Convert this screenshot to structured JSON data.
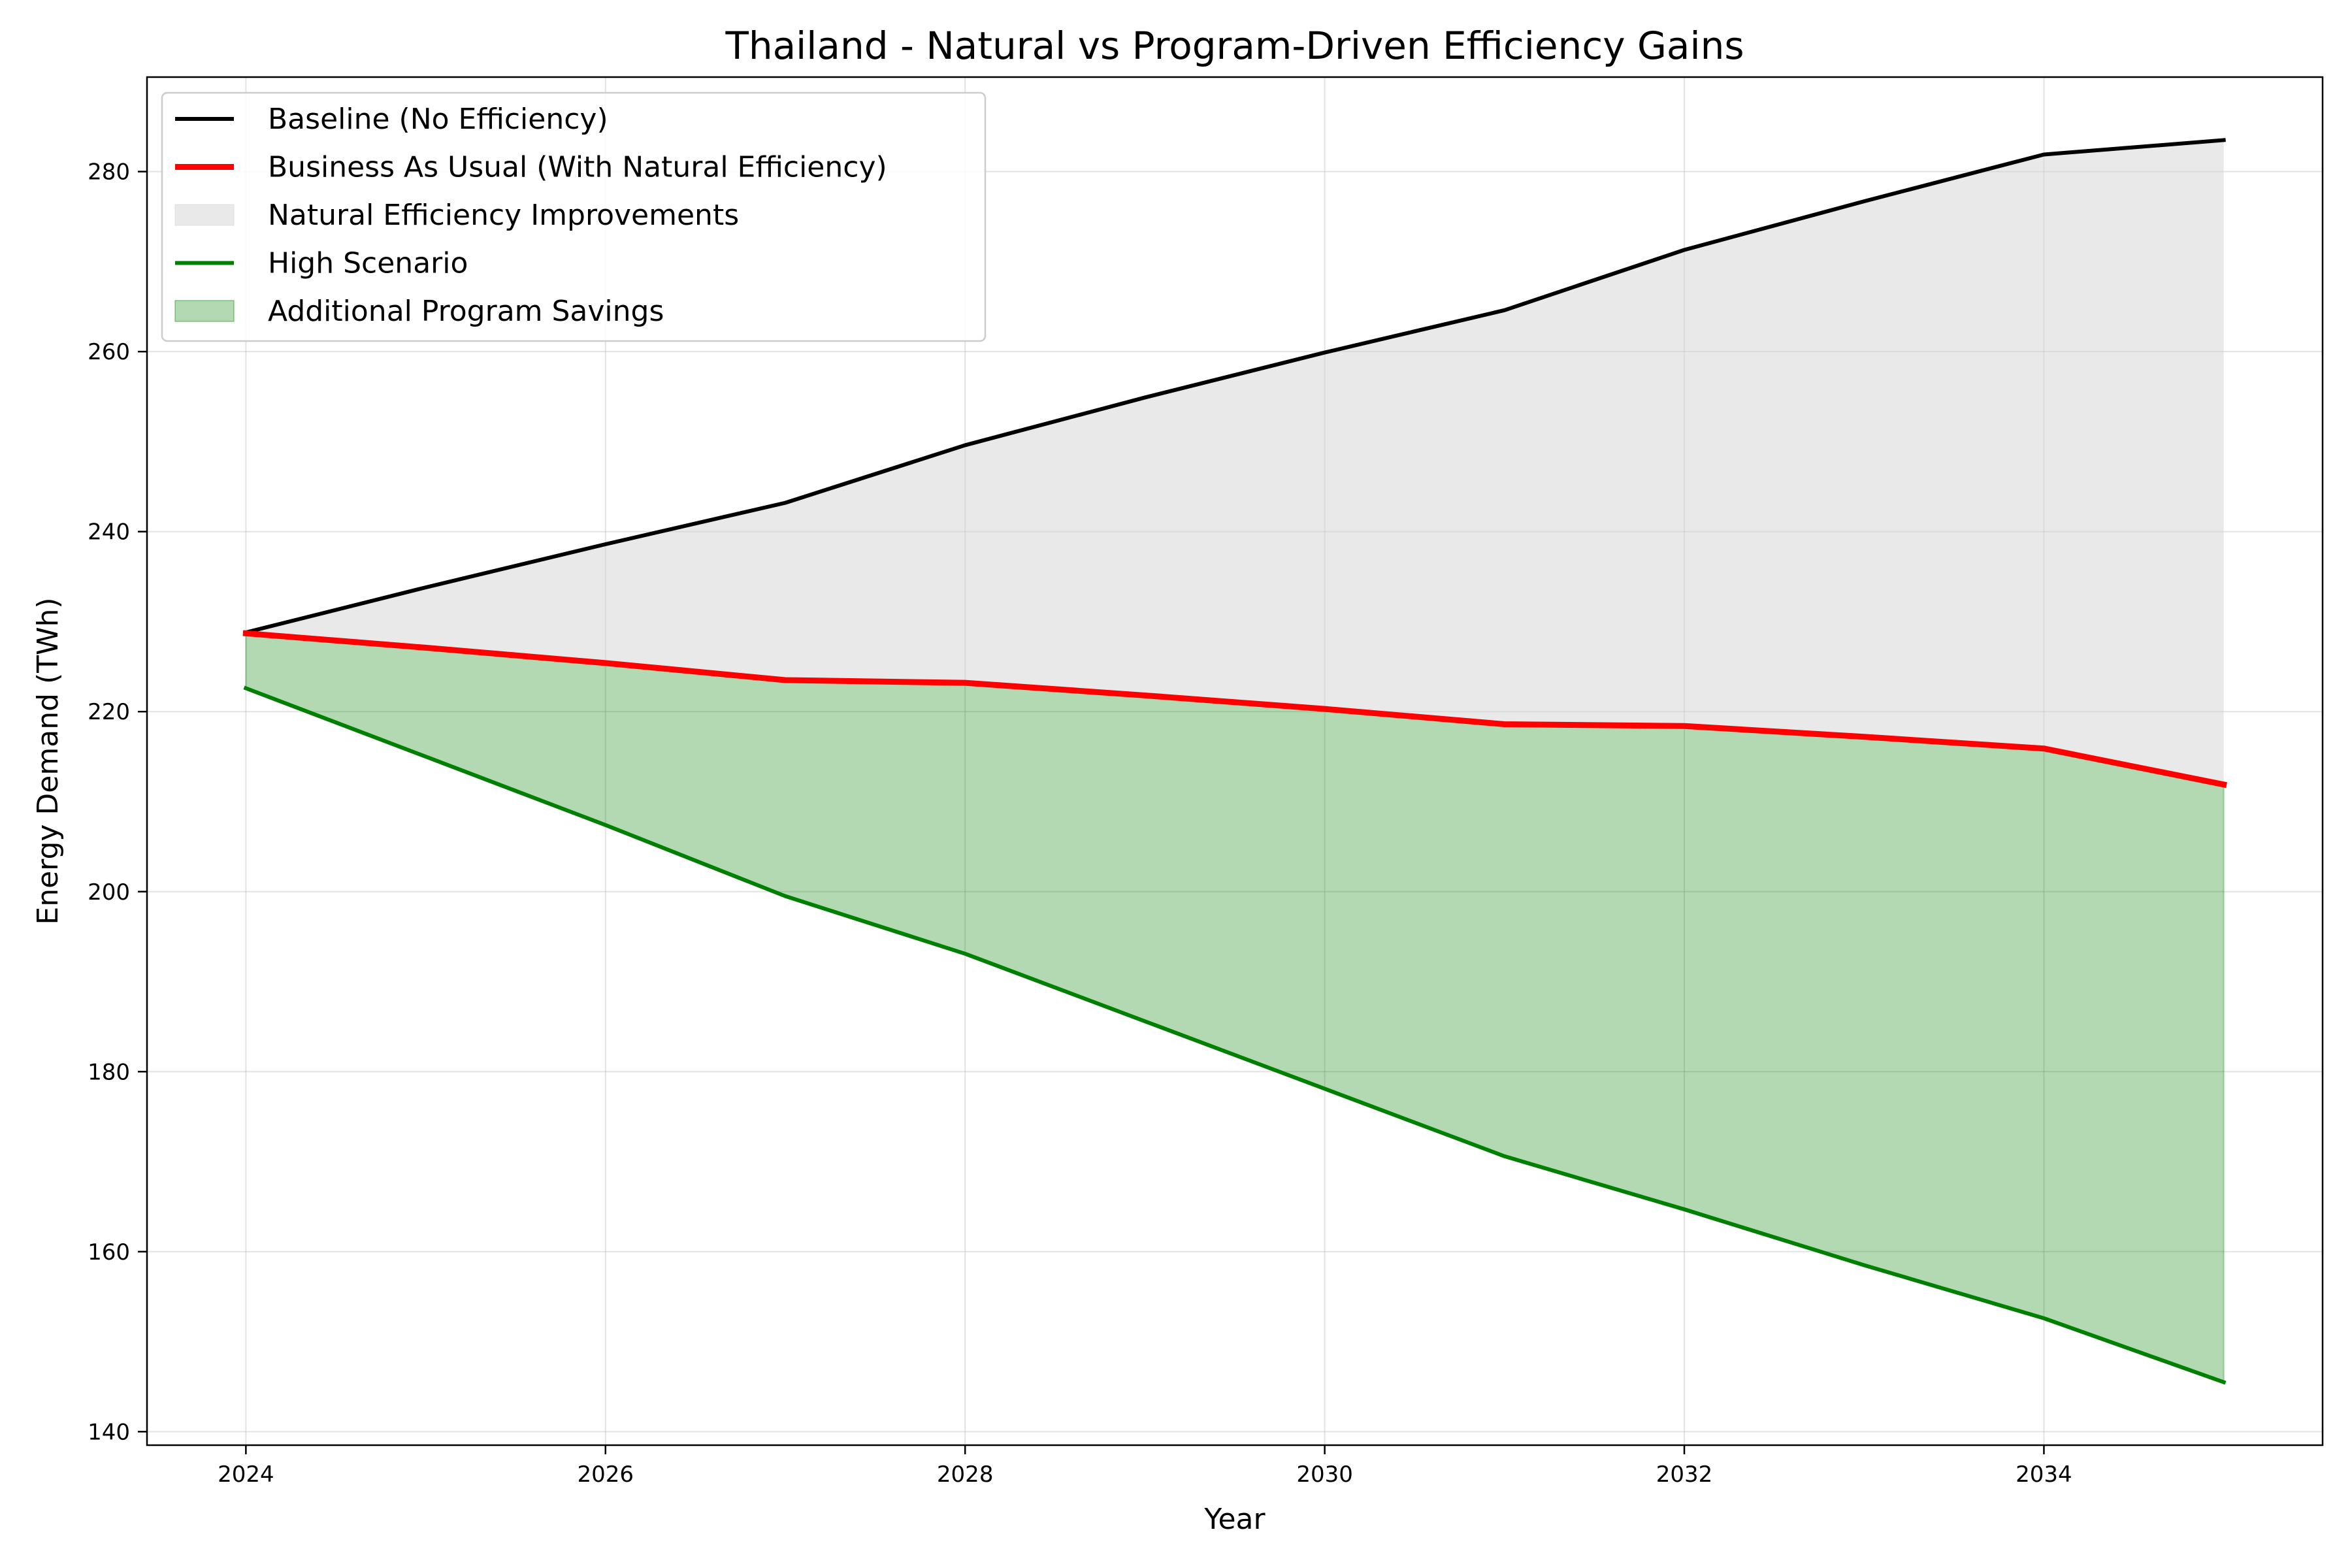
{
  "chart_data": {
    "type": "line",
    "title": "Thailand - Natural vs Program-Driven Efficiency Gains",
    "xlabel": "Year",
    "ylabel": "Energy Demand (TWh)",
    "x": [
      2024,
      2025,
      2026,
      2027,
      2028,
      2029,
      2030,
      2031,
      2032,
      2033,
      2034,
      2035
    ],
    "xlim": [
      2023.45,
      2035.55
    ],
    "ylim": [
      138.5,
      290.5
    ],
    "xticks": [
      2024,
      2026,
      2028,
      2030,
      2032,
      2034
    ],
    "yticks": [
      140,
      160,
      180,
      200,
      220,
      240,
      260,
      280
    ],
    "grid": true,
    "legend_position": "top-left",
    "series": [
      {
        "name": "Baseline (No Efficiency)",
        "color": "#000000",
        "values": [
          228.8,
          233.8,
          238.6,
          243.2,
          249.6,
          254.9,
          259.9,
          264.6,
          271.3,
          276.7,
          281.9,
          283.5
        ]
      },
      {
        "name": "Business As Usual (With Natural Efficiency)",
        "color": "#ff0000",
        "values": [
          228.7,
          227.1,
          225.4,
          223.5,
          223.2,
          221.8,
          220.3,
          218.6,
          218.4,
          217.2,
          215.9,
          211.9
        ]
      },
      {
        "name": "High Scenario",
        "color": "#008000",
        "values": [
          222.6,
          215.0,
          207.4,
          199.5,
          193.1,
          185.6,
          178.1,
          170.6,
          164.7,
          158.5,
          152.6,
          145.5
        ]
      }
    ],
    "fills": [
      {
        "name": "Natural Efficiency Improvements",
        "between": [
          "Baseline (No Efficiency)",
          "Business As Usual (With Natural Efficiency)"
        ],
        "color": "#d3d3d3"
      },
      {
        "name": "Additional Program Savings",
        "between": [
          "Business As Usual (With Natural Efficiency)",
          "High Scenario"
        ],
        "color": "#008000"
      }
    ],
    "legend": [
      {
        "label": "Baseline (No Efficiency)",
        "kind": "line",
        "color": "#000000"
      },
      {
        "label": "Business As Usual (With Natural Efficiency)",
        "kind": "line",
        "color": "#ff0000"
      },
      {
        "label": "Natural Efficiency Improvements",
        "kind": "patch",
        "color": "#d3d3d3"
      },
      {
        "label": "High Scenario",
        "kind": "line",
        "color": "#008000"
      },
      {
        "label": "Additional Program Savings",
        "kind": "patch",
        "color": "#008000"
      }
    ]
  }
}
